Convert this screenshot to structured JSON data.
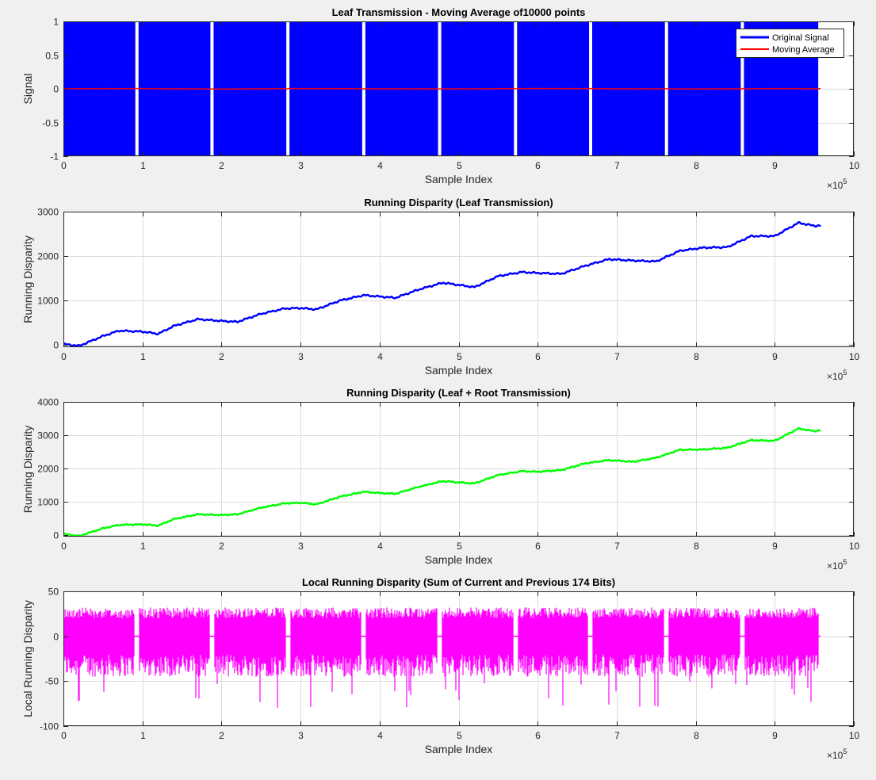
{
  "figure": {
    "background": "#f0f0f0"
  },
  "chart_data": [
    {
      "type": "line",
      "title": "Leaf Transmission - Moving Average of10000 points",
      "xlabel": "Sample Index",
      "ylabel": "Signal",
      "x_exponent": "5",
      "xlim": [
        0,
        10
      ],
      "ylim": [
        -1,
        1
      ],
      "xticks": [
        0,
        1,
        2,
        3,
        4,
        5,
        6,
        7,
        8,
        9,
        10
      ],
      "yticks": [
        -1,
        -0.5,
        0,
        0.5,
        1
      ],
      "ytick_labels": [
        "-1",
        "-0.5",
        "0",
        "0.5",
        "1"
      ],
      "grid": true,
      "legend": "top-right",
      "signal_band": {
        "ymin": -1,
        "ymax": 1,
        "x_end": 9.55
      },
      "gaps": [
        0.93,
        1.88,
        2.84,
        3.8,
        4.76,
        5.72,
        6.67,
        7.63,
        8.59
      ],
      "series": [
        {
          "name": "Original Signal",
          "color": "#0000ff",
          "style": "band"
        },
        {
          "name": "Moving Average",
          "color": "#ff0000",
          "x": [
            0,
            1,
            2,
            3,
            4,
            5,
            6,
            7,
            8,
            9,
            9.58
          ],
          "values": [
            0,
            0.002,
            -0.004,
            0.003,
            0,
            -0.002,
            0.004,
            0,
            -0.003,
            0.002,
            0
          ]
        }
      ]
    },
    {
      "type": "line",
      "title": "Running Disparity (Leaf Transmission)",
      "xlabel": "Sample Index",
      "ylabel": "Running Disparity",
      "x_exponent": "5",
      "xlim": [
        0,
        10
      ],
      "ylim": [
        -50,
        3000
      ],
      "xticks": [
        0,
        1,
        2,
        3,
        4,
        5,
        6,
        7,
        8,
        9,
        10
      ],
      "yticks": [
        0,
        1000,
        2000,
        3000
      ],
      "ytick_labels": [
        "0",
        "1000",
        "2000",
        "3000"
      ],
      "grid": true,
      "series": [
        {
          "color": "#0000ff",
          "x": [
            0,
            0.2,
            0.5,
            0.7,
            1.0,
            1.2,
            1.4,
            1.7,
            2.0,
            2.2,
            2.5,
            2.8,
            3.0,
            3.2,
            3.5,
            3.8,
            4.0,
            4.2,
            4.5,
            4.8,
            5.0,
            5.2,
            5.5,
            5.8,
            6.0,
            6.3,
            6.6,
            6.9,
            7.2,
            7.5,
            7.8,
            8.1,
            8.4,
            8.7,
            9.0,
            9.3,
            9.5,
            9.58
          ],
          "values": [
            20,
            -20,
            200,
            320,
            300,
            250,
            430,
            580,
            540,
            520,
            700,
            820,
            830,
            800,
            1000,
            1120,
            1090,
            1060,
            1250,
            1400,
            1350,
            1300,
            1550,
            1640,
            1620,
            1600,
            1780,
            1930,
            1900,
            1880,
            2120,
            2190,
            2200,
            2450,
            2450,
            2750,
            2680,
            2690
          ]
        }
      ]
    },
    {
      "type": "line",
      "title": "Running Disparity (Leaf + Root Transmission)",
      "xlabel": "Sample Index",
      "ylabel": "Running Disparity",
      "x_exponent": "5",
      "xlim": [
        0,
        10
      ],
      "ylim": [
        -50,
        4000
      ],
      "xticks": [
        0,
        1,
        2,
        3,
        4,
        5,
        6,
        7,
        8,
        9,
        10
      ],
      "yticks": [
        0,
        1000,
        2000,
        3000,
        4000
      ],
      "ytick_labels": [
        "0",
        "1000",
        "2000",
        "3000",
        "4000"
      ],
      "grid": true,
      "series": [
        {
          "color": "#00ff00",
          "x": [
            0,
            0.2,
            0.5,
            0.7,
            1.0,
            1.2,
            1.4,
            1.7,
            2.0,
            2.2,
            2.5,
            2.8,
            3.0,
            3.2,
            3.5,
            3.8,
            4.0,
            4.2,
            4.5,
            4.8,
            5.0,
            5.2,
            5.5,
            5.8,
            6.0,
            6.3,
            6.6,
            6.9,
            7.2,
            7.5,
            7.8,
            8.1,
            8.4,
            8.7,
            9.0,
            9.3,
            9.5,
            9.58
          ],
          "values": [
            30,
            -30,
            200,
            300,
            320,
            280,
            480,
            620,
            600,
            620,
            820,
            950,
            970,
            920,
            1150,
            1300,
            1260,
            1240,
            1450,
            1620,
            1580,
            1550,
            1800,
            1920,
            1900,
            1950,
            2150,
            2250,
            2200,
            2320,
            2560,
            2570,
            2620,
            2850,
            2830,
            3200,
            3120,
            3150
          ]
        }
      ]
    },
    {
      "type": "line",
      "title": "Local Running Disparity (Sum of Current and Previous 174 Bits)",
      "xlabel": "Sample Index",
      "ylabel": "Local Running Disparity",
      "x_exponent": "5",
      "xlim": [
        0,
        10
      ],
      "ylim": [
        -100,
        50
      ],
      "xticks": [
        0,
        1,
        2,
        3,
        4,
        5,
        6,
        7,
        8,
        9,
        10
      ],
      "yticks": [
        -100,
        -50,
        0,
        50
      ],
      "ytick_labels": [
        "-100",
        "-50",
        "0",
        "50"
      ],
      "grid": true,
      "gaps": [
        0.93,
        1.88,
        2.84,
        3.8,
        4.76,
        5.72,
        6.67,
        7.63,
        8.59
      ],
      "series": [
        {
          "color": "#ff00ff",
          "style": "spikes",
          "x_end": 9.55,
          "typical_range": [
            -45,
            32
          ],
          "min_spike": -80
        }
      ]
    }
  ]
}
